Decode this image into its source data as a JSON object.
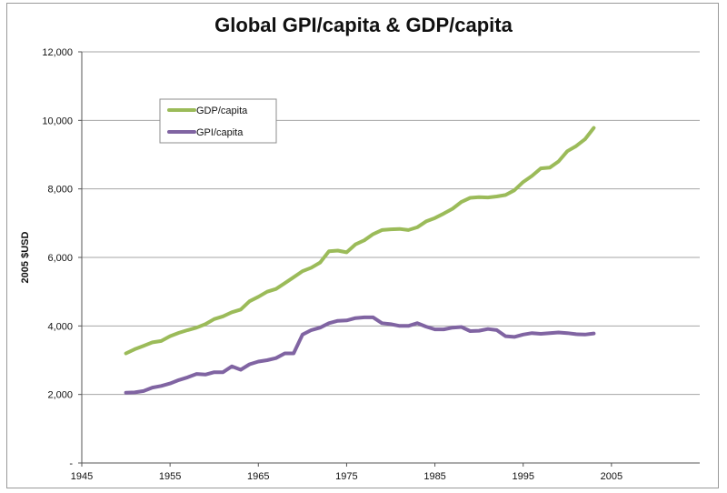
{
  "chart_data": {
    "type": "line",
    "title": "Global GPI/capita & GDP/capita",
    "xlabel": "",
    "ylabel": "2005 $USD",
    "xlim": [
      1945,
      2015
    ],
    "ylim": [
      0,
      12000
    ],
    "x_ticks": [
      1945,
      1955,
      1965,
      1975,
      1985,
      1995,
      2005
    ],
    "y_ticks": [
      {
        "value": 0,
        "label": "-"
      },
      {
        "value": 2000,
        "label": "2,000"
      },
      {
        "value": 4000,
        "label": "4,000"
      },
      {
        "value": 6000,
        "label": "6,000"
      },
      {
        "value": 8000,
        "label": "8,000"
      },
      {
        "value": 10000,
        "label": "10,000"
      },
      {
        "value": 12000,
        "label": "12,000"
      }
    ],
    "grid": "horizontal",
    "legend_position": "top-left",
    "x": [
      1950,
      1951,
      1952,
      1953,
      1954,
      1955,
      1956,
      1957,
      1958,
      1959,
      1960,
      1961,
      1962,
      1963,
      1964,
      1965,
      1966,
      1967,
      1968,
      1969,
      1970,
      1971,
      1972,
      1973,
      1974,
      1975,
      1976,
      1977,
      1978,
      1979,
      1980,
      1981,
      1982,
      1983,
      1984,
      1985,
      1986,
      1987,
      1988,
      1989,
      1990,
      1991,
      1992,
      1993,
      1994,
      1995,
      1996,
      1997,
      1998,
      1999,
      2000,
      2001,
      2002,
      2003
    ],
    "series": [
      {
        "name": "GDP/capita",
        "color": "#9bbb59",
        "values": [
          3200,
          3320,
          3420,
          3520,
          3560,
          3700,
          3800,
          3880,
          3950,
          4050,
          4200,
          4280,
          4400,
          4480,
          4720,
          4850,
          5000,
          5080,
          5250,
          5420,
          5600,
          5700,
          5850,
          6180,
          6200,
          6150,
          6380,
          6500,
          6680,
          6800,
          6820,
          6830,
          6800,
          6880,
          7050,
          7150,
          7280,
          7420,
          7620,
          7740,
          7760,
          7750,
          7780,
          7820,
          7960,
          8200,
          8380,
          8600,
          8620,
          8800,
          9100,
          9250,
          9450,
          9780
        ]
      },
      {
        "name": "GPI/capita",
        "color": "#8064a2",
        "values": [
          2050,
          2060,
          2100,
          2200,
          2250,
          2320,
          2420,
          2500,
          2600,
          2580,
          2650,
          2650,
          2820,
          2720,
          2880,
          2960,
          3000,
          3060,
          3200,
          3200,
          3750,
          3880,
          3950,
          4080,
          4150,
          4160,
          4230,
          4250,
          4250,
          4080,
          4050,
          4000,
          4000,
          4080,
          3980,
          3900,
          3900,
          3950,
          3970,
          3850,
          3860,
          3910,
          3880,
          3700,
          3680,
          3750,
          3790,
          3770,
          3790,
          3810,
          3790,
          3760,
          3750,
          3780
        ]
      }
    ]
  }
}
